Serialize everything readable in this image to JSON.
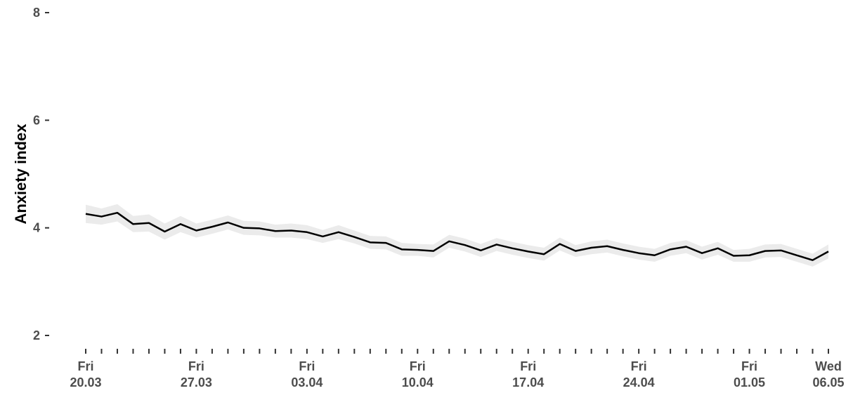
{
  "chart_data": {
    "type": "line",
    "title": "",
    "xlabel": "",
    "ylabel": "Anxiety index",
    "ylim": [
      2,
      8
    ],
    "y_ticks": [
      "2",
      "4",
      "6",
      "8"
    ],
    "x_tick_labels": [
      {
        "day": "Fri",
        "date": "20.03"
      },
      {
        "day": "Fri",
        "date": "27.03"
      },
      {
        "day": "Fri",
        "date": "03.04"
      },
      {
        "day": "Fri",
        "date": "10.04"
      },
      {
        "day": "Fri",
        "date": "17.04"
      },
      {
        "day": "Fri",
        "date": "24.04"
      },
      {
        "day": "Fri",
        "date": "01.05"
      },
      {
        "day": "Wed",
        "date": "06.05"
      }
    ],
    "x": [
      "20.03",
      "21.03",
      "22.03",
      "23.03",
      "24.03",
      "25.03",
      "26.03",
      "27.03",
      "28.03",
      "29.03",
      "30.03",
      "31.03",
      "01.04",
      "02.04",
      "03.04",
      "04.04",
      "05.04",
      "06.04",
      "07.04",
      "08.04",
      "09.04",
      "10.04",
      "11.04",
      "12.04",
      "13.04",
      "14.04",
      "15.04",
      "16.04",
      "17.04",
      "18.04",
      "19.04",
      "20.04",
      "21.04",
      "22.04",
      "23.04",
      "24.04",
      "25.04",
      "26.04",
      "27.04",
      "28.04",
      "29.04",
      "30.04",
      "01.05",
      "02.05",
      "03.05",
      "04.05",
      "05.05",
      "06.05"
    ],
    "series": [
      {
        "values": [
          4.26,
          4.21,
          4.28,
          4.07,
          4.09,
          3.93,
          4.07,
          3.95,
          4.02,
          4.1,
          4.0,
          3.99,
          3.94,
          3.95,
          3.92,
          3.84,
          3.92,
          3.83,
          3.73,
          3.72,
          3.6,
          3.59,
          3.57,
          3.75,
          3.68,
          3.58,
          3.69,
          3.62,
          3.56,
          3.51,
          3.7,
          3.57,
          3.63,
          3.66,
          3.59,
          3.53,
          3.49,
          3.6,
          3.65,
          3.53,
          3.62,
          3.48,
          3.49,
          3.57,
          3.58,
          3.49,
          3.4,
          3.56
        ],
        "lower": [
          4.09,
          4.06,
          4.12,
          3.92,
          3.93,
          3.78,
          3.92,
          3.82,
          3.89,
          3.97,
          3.87,
          3.86,
          3.82,
          3.82,
          3.79,
          3.72,
          3.79,
          3.71,
          3.61,
          3.6,
          3.48,
          3.48,
          3.45,
          3.63,
          3.56,
          3.46,
          3.57,
          3.5,
          3.44,
          3.39,
          3.58,
          3.46,
          3.51,
          3.54,
          3.47,
          3.41,
          3.37,
          3.48,
          3.53,
          3.41,
          3.5,
          3.37,
          3.37,
          3.45,
          3.46,
          3.37,
          3.28,
          3.43
        ],
        "upper": [
          4.43,
          4.36,
          4.44,
          4.22,
          4.25,
          4.08,
          4.22,
          4.08,
          4.15,
          4.23,
          4.13,
          4.12,
          4.06,
          4.08,
          4.05,
          3.96,
          4.05,
          3.95,
          3.85,
          3.84,
          3.72,
          3.7,
          3.69,
          3.87,
          3.8,
          3.7,
          3.81,
          3.74,
          3.68,
          3.63,
          3.82,
          3.68,
          3.75,
          3.78,
          3.71,
          3.65,
          3.61,
          3.72,
          3.77,
          3.65,
          3.74,
          3.59,
          3.61,
          3.69,
          3.7,
          3.61,
          3.52,
          3.69
        ],
        "color": "#000000",
        "band_color": "#ebebeb"
      }
    ],
    "grid": false,
    "legend": "none"
  }
}
